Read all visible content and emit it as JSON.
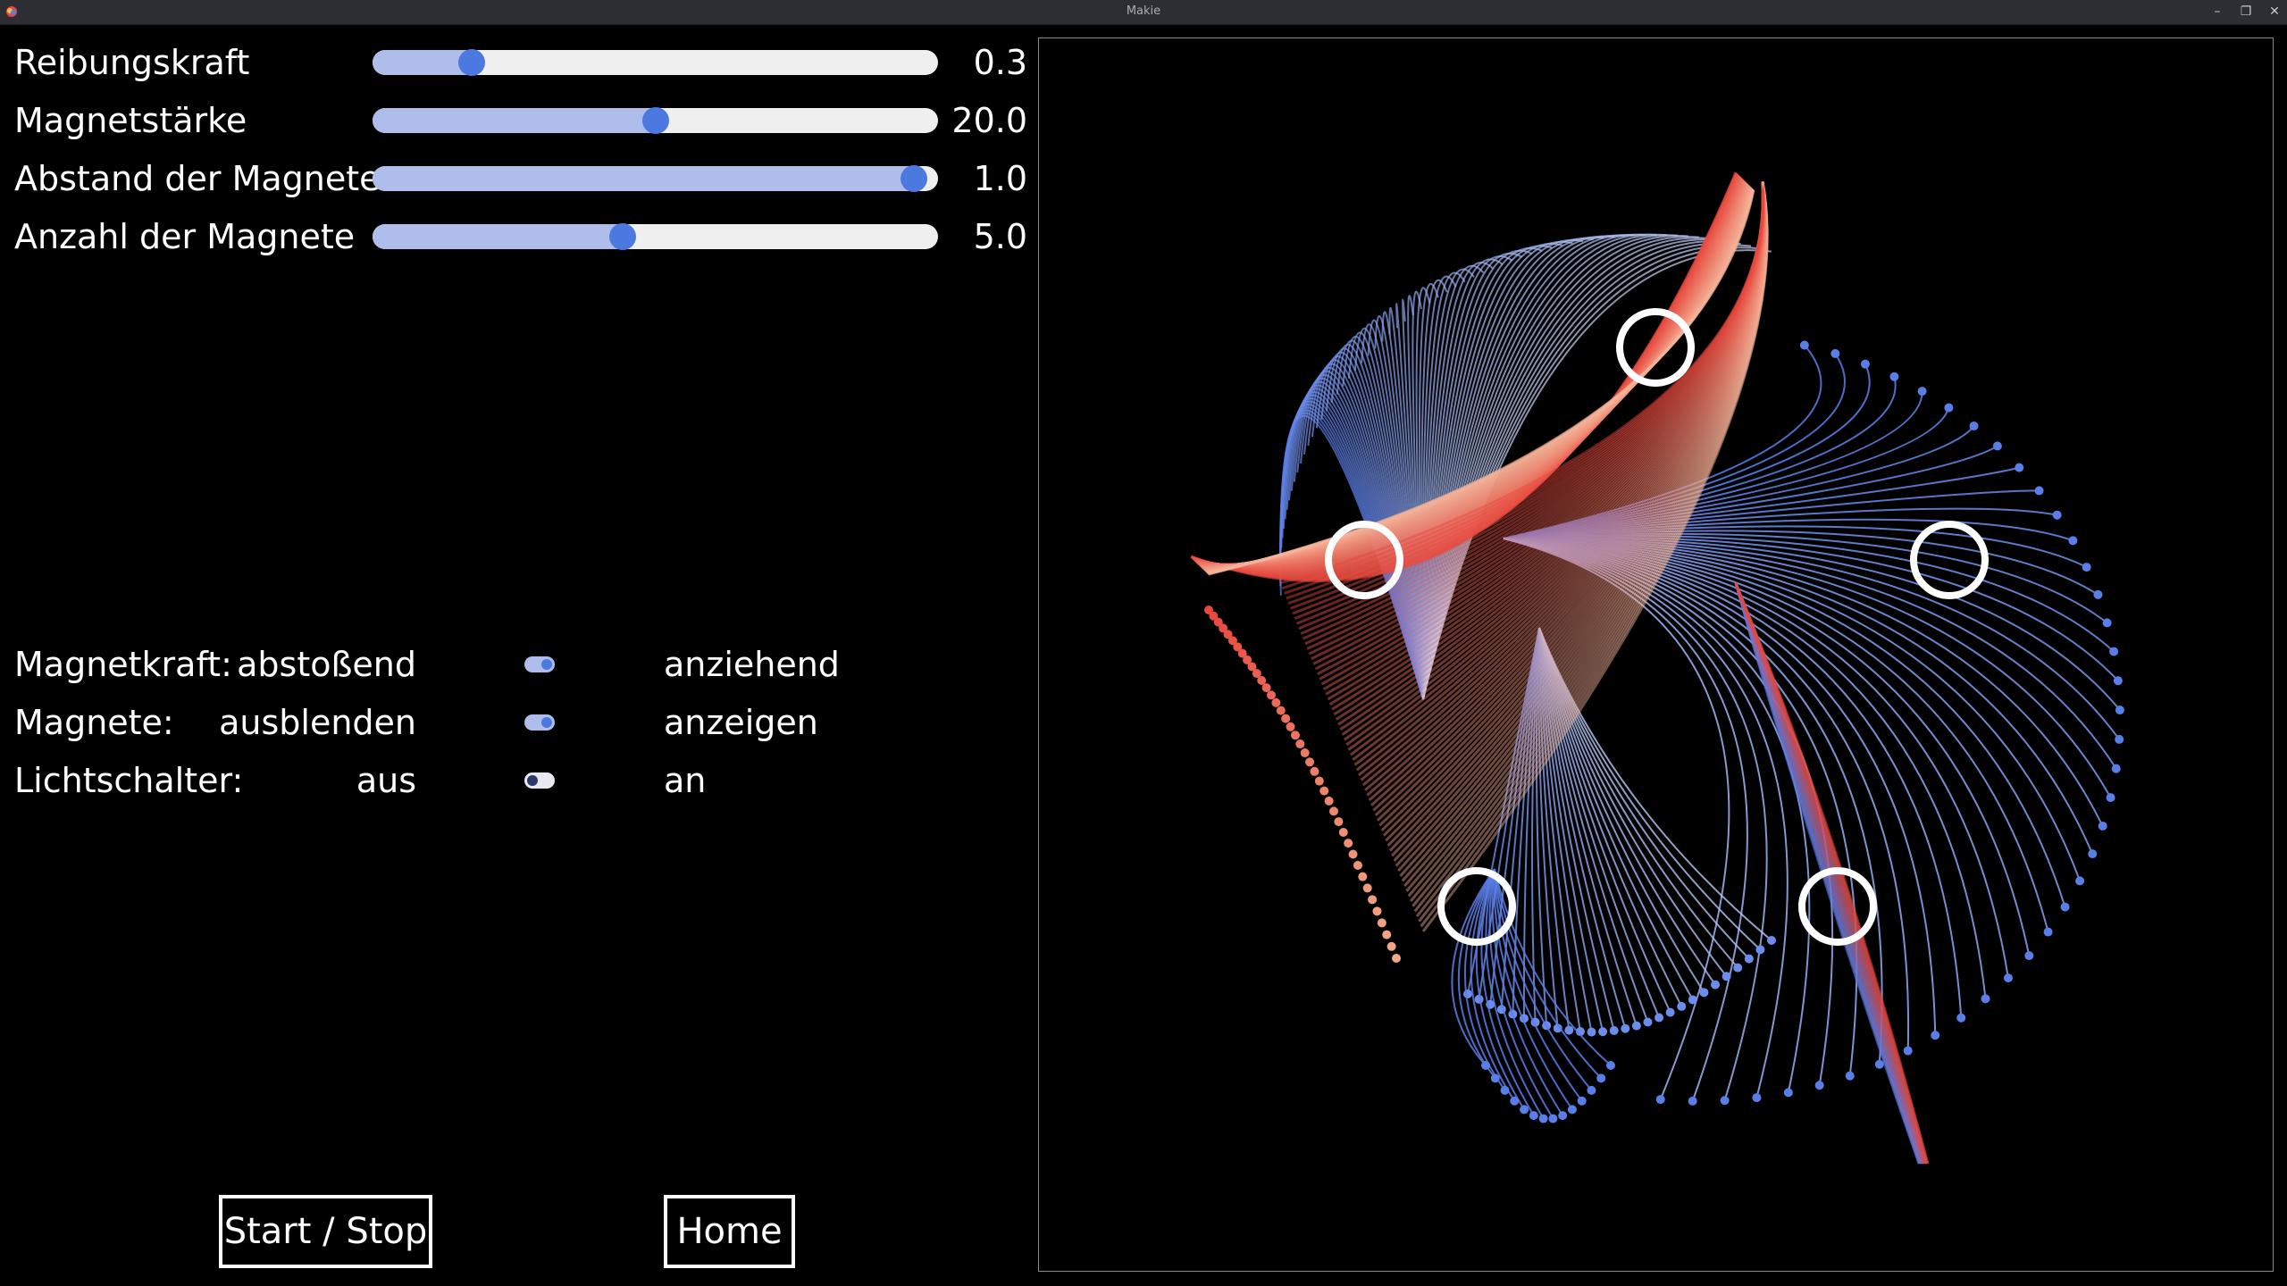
{
  "window": {
    "title": "Makie",
    "min_glyph": "–",
    "max_glyph": "❐",
    "close_glyph": "✕"
  },
  "sliders": [
    {
      "label": "Reibungskraft",
      "value_text": "0.3",
      "fraction": 0.16
    },
    {
      "label": "Magnetstärke",
      "value_text": "20.0",
      "fraction": 0.5
    },
    {
      "label": "Abstand der Magnete",
      "value_text": "1.0",
      "fraction": 0.98
    },
    {
      "label": "Anzahl der Magnete",
      "value_text": "5.0",
      "fraction": 0.44
    }
  ],
  "toggles": [
    {
      "label": "Magnetkraft:",
      "off_label": "abstoßend",
      "on_label": "anziehend",
      "state": true
    },
    {
      "label": "Magnete:",
      "off_label": "ausblenden",
      "on_label": "anzeigen",
      "state": true
    },
    {
      "label": "Lichtschalter:",
      "off_label": "aus",
      "on_label": "an",
      "state": false
    }
  ],
  "buttons": {
    "start_stop": "Start / Stop",
    "home": "Home"
  },
  "colors": {
    "accent": "#4b79e0",
    "track_fill": "#aebde9",
    "track": "#efefef",
    "warm": "#e8473c",
    "cool": "#5a7ee8"
  }
}
